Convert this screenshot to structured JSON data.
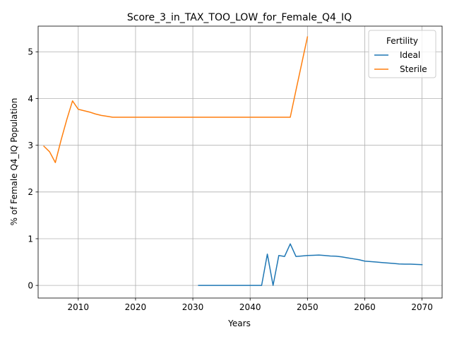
{
  "chart_data": {
    "type": "line",
    "title": "Score_3_in_TAX_TOO_LOW_for_Female_Q4_IQ",
    "xlabel": "Years",
    "ylabel": "% of Female Q4_IQ Population",
    "xlim": [
      2003,
      2073.5
    ],
    "ylim": [
      -0.27,
      5.55
    ],
    "xticks": [
      2010,
      2020,
      2030,
      2040,
      2050,
      2060,
      2070
    ],
    "yticks": [
      0,
      1,
      2,
      3,
      4,
      5
    ],
    "grid": true,
    "legend": {
      "title": "Fertility",
      "placement": "top-right"
    },
    "series": [
      {
        "name": "Ideal",
        "color": "#1f77b4",
        "x": [
          2031,
          2032,
          2033,
          2034,
          2035,
          2036,
          2037,
          2038,
          2039,
          2040,
          2041,
          2042,
          2043,
          2044,
          2045,
          2046,
          2047,
          2048,
          2049,
          2050,
          2051,
          2052,
          2053,
          2054,
          2055,
          2056,
          2057,
          2058,
          2059,
          2060,
          2061,
          2062,
          2063,
          2064,
          2065,
          2066,
          2067,
          2068,
          2069,
          2070
        ],
        "y": [
          0,
          0,
          0,
          0,
          0,
          0,
          0,
          0,
          0,
          0,
          0,
          0,
          0.67,
          0,
          0.64,
          0.62,
          0.89,
          0.62,
          0.63,
          0.64,
          0.645,
          0.65,
          0.64,
          0.63,
          0.625,
          0.61,
          0.59,
          0.57,
          0.55,
          0.52,
          0.51,
          0.5,
          0.49,
          0.48,
          0.47,
          0.46,
          0.455,
          0.455,
          0.45,
          0.445
        ]
      },
      {
        "name": "Sterile",
        "color": "#ff7f0e",
        "x": [
          2004,
          2005,
          2006,
          2007,
          2008,
          2009,
          2010,
          2011,
          2012,
          2013,
          2014,
          2015,
          2016,
          2017,
          2018,
          2019,
          2020,
          2025,
          2030,
          2035,
          2040,
          2045,
          2046,
          2047,
          2048,
          2049,
          2050
        ],
        "y": [
          2.98,
          2.86,
          2.63,
          3.11,
          3.55,
          3.95,
          3.77,
          3.74,
          3.71,
          3.67,
          3.64,
          3.62,
          3.6,
          3.6,
          3.6,
          3.6,
          3.6,
          3.6,
          3.6,
          3.6,
          3.6,
          3.6,
          3.6,
          3.6,
          4.18,
          4.75,
          5.32
        ]
      }
    ]
  }
}
